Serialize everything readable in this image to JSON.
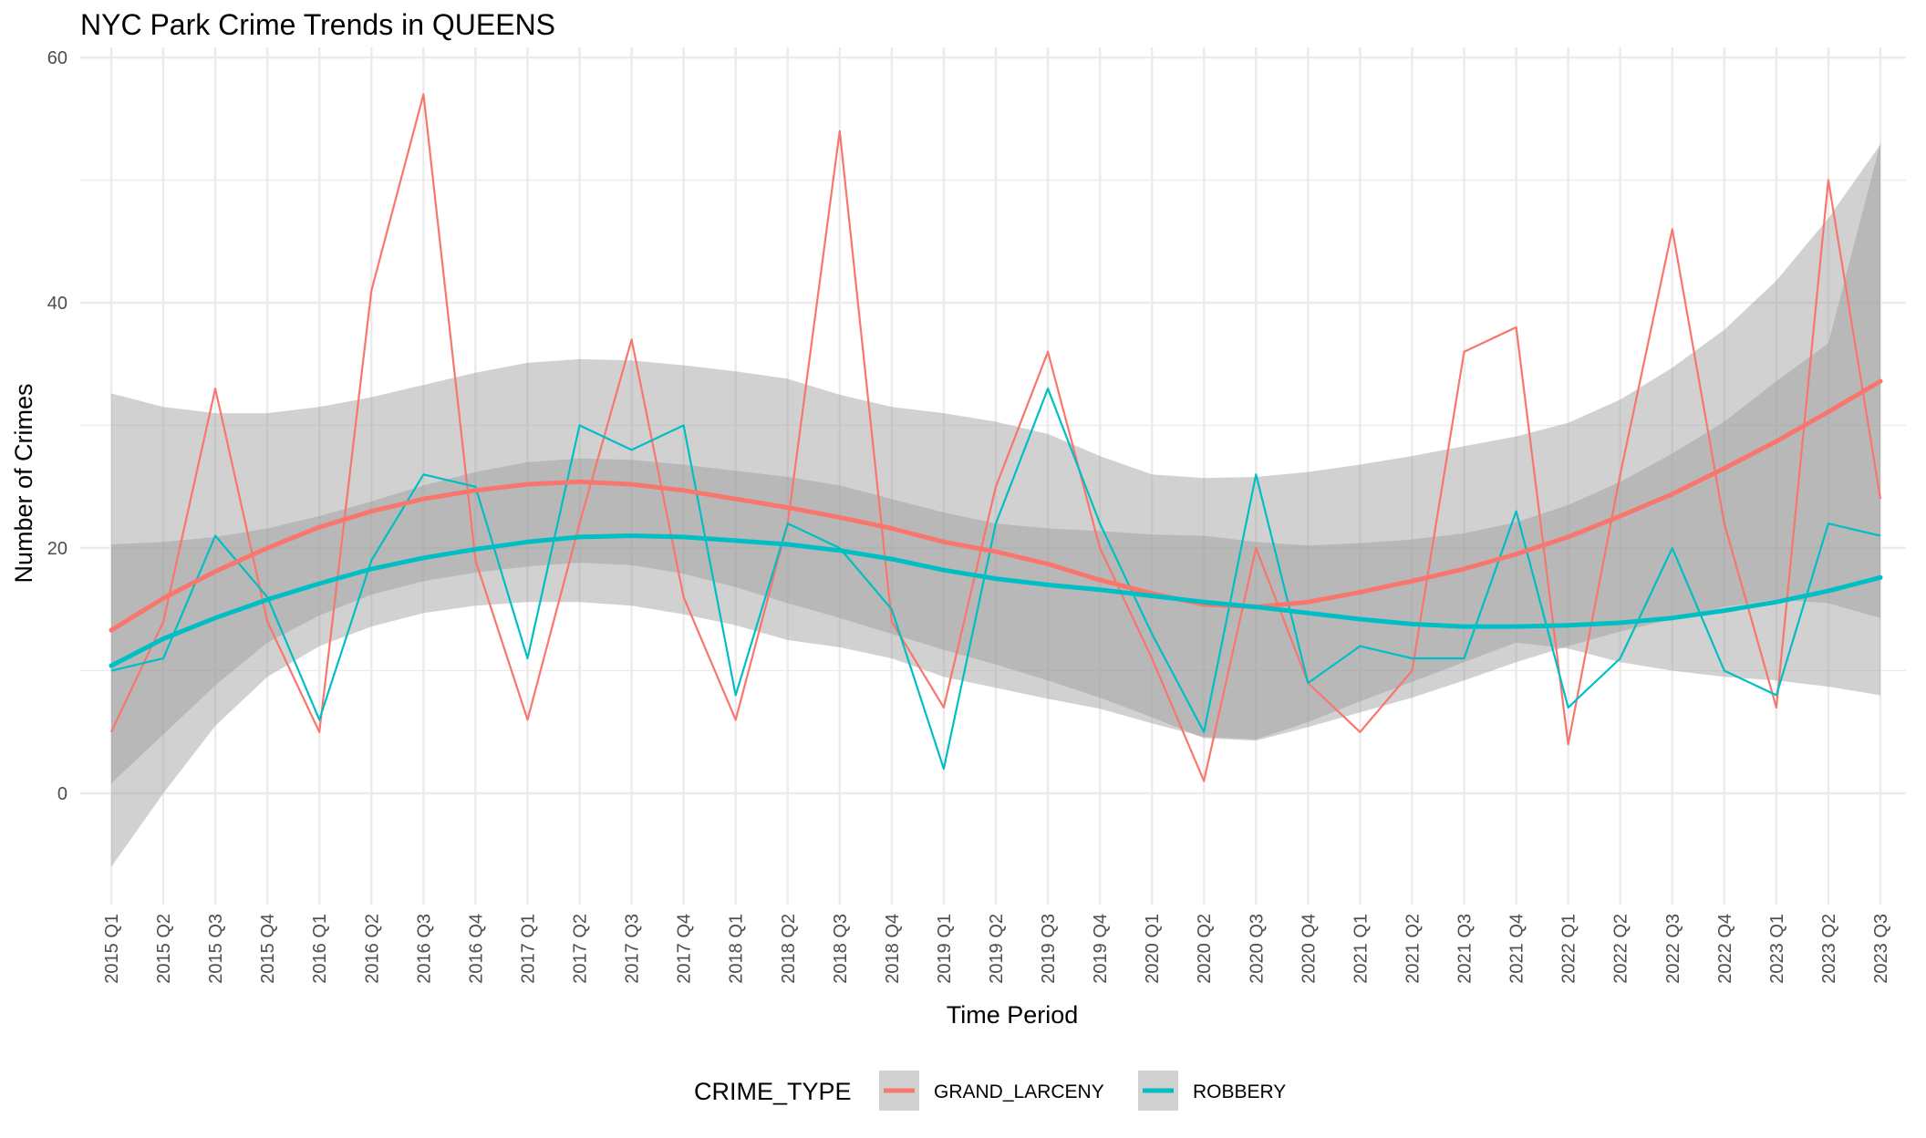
{
  "chart_data": {
    "type": "line",
    "title": "NYC Park Crime Trends in QUEENS",
    "xlabel": "Time Period",
    "ylabel": "Number of Crimes",
    "ylim": [
      -9,
      60
    ],
    "yticks": [
      0,
      20,
      40,
      60
    ],
    "grid": true,
    "legend": {
      "title": "CRIME_TYPE",
      "position": "bottom"
    },
    "categories": [
      "2015 Q1",
      "2015 Q2",
      "2015 Q3",
      "2015 Q4",
      "2016 Q1",
      "2016 Q2",
      "2016 Q3",
      "2016 Q4",
      "2017 Q1",
      "2017 Q2",
      "2017 Q3",
      "2017 Q4",
      "2018 Q1",
      "2018 Q2",
      "2018 Q3",
      "2018 Q4",
      "2019 Q1",
      "2019 Q2",
      "2019 Q3",
      "2019 Q4",
      "2020 Q1",
      "2020 Q2",
      "2020 Q3",
      "2020 Q4",
      "2021 Q1",
      "2021 Q2",
      "2021 Q3",
      "2021 Q4",
      "2022 Q1",
      "2022 Q2",
      "2022 Q3",
      "2022 Q4",
      "2023 Q1",
      "2023 Q2",
      "2023 Q3"
    ],
    "series": [
      {
        "name": "GRAND_LARCENY",
        "color": "#F8766D",
        "values": [
          5,
          14,
          33,
          14,
          5,
          41,
          57,
          19,
          6,
          22,
          37,
          16,
          6,
          22,
          54,
          14,
          7,
          25,
          36,
          20,
          11,
          1,
          20,
          9,
          5,
          10,
          36,
          38,
          4,
          26,
          46,
          22,
          7,
          50,
          24
        ],
        "smooth": [
          13.3,
          15.9,
          18.1,
          20.0,
          21.7,
          23.0,
          24.0,
          24.7,
          25.2,
          25.4,
          25.2,
          24.7,
          24.0,
          23.3,
          22.5,
          21.6,
          20.5,
          19.7,
          18.7,
          17.4,
          16.3,
          15.4,
          15.2,
          15.6,
          16.4,
          17.3,
          18.3,
          19.5,
          20.9,
          22.6,
          24.4,
          26.5,
          28.7,
          31.1,
          33.6
        ],
        "band_lower": [
          0.8,
          4.8,
          8.8,
          12.3,
          14.5,
          16.2,
          17.3,
          18.0,
          18.5,
          18.8,
          18.6,
          17.9,
          16.8,
          15.5,
          14.3,
          13.0,
          11.7,
          10.5,
          9.2,
          7.8,
          6.2,
          4.5,
          4.3,
          5.4,
          6.6,
          7.8,
          9.2,
          10.7,
          12.0,
          13.2,
          14.2,
          15.2,
          15.8,
          15.5,
          14.3
        ],
        "band_upper": [
          20.3,
          20.5,
          20.9,
          21.6,
          22.6,
          23.8,
          25.1,
          26.2,
          27.0,
          27.3,
          27.2,
          26.8,
          26.3,
          25.8,
          25.1,
          24.0,
          22.9,
          22.0,
          21.6,
          21.4,
          21.1,
          21.0,
          20.5,
          20.2,
          20.4,
          20.7,
          21.2,
          22.1,
          23.5,
          25.4,
          27.7,
          30.3,
          33.6,
          36.7,
          53.0
        ]
      },
      {
        "name": "ROBBERY",
        "color": "#00BFC4",
        "values": [
          10,
          11,
          21,
          16,
          6,
          19,
          26,
          25,
          11,
          30,
          28,
          30,
          8,
          22,
          20,
          15,
          2,
          22,
          33,
          22,
          13,
          5,
          26,
          9,
          12,
          11,
          11,
          23,
          7,
          11,
          20,
          10,
          8,
          22,
          21
        ],
        "smooth": [
          10.4,
          12.6,
          14.3,
          15.8,
          17.1,
          18.3,
          19.2,
          19.9,
          20.5,
          20.9,
          21.0,
          20.9,
          20.6,
          20.3,
          19.8,
          19.1,
          18.2,
          17.5,
          17.0,
          16.6,
          16.1,
          15.6,
          15.2,
          14.7,
          14.2,
          13.8,
          13.6,
          13.6,
          13.7,
          13.9,
          14.3,
          14.9,
          15.6,
          16.5,
          17.6
        ],
        "band_lower": [
          -6.0,
          0.0,
          5.5,
          9.5,
          12.0,
          13.6,
          14.7,
          15.3,
          15.6,
          15.6,
          15.3,
          14.6,
          13.7,
          12.5,
          11.9,
          11.0,
          9.5,
          8.6,
          7.7,
          6.9,
          5.7,
          4.6,
          4.4,
          5.8,
          7.5,
          9.1,
          10.7,
          12.3,
          11.8,
          10.7,
          10.0,
          9.5,
          9.2,
          8.7,
          8.0
        ],
        "band_upper": [
          32.6,
          31.5,
          31.0,
          31.0,
          31.5,
          32.3,
          33.3,
          34.3,
          35.1,
          35.4,
          35.3,
          34.9,
          34.4,
          33.8,
          32.5,
          31.5,
          31.0,
          30.3,
          29.3,
          27.5,
          26.0,
          25.7,
          25.8,
          26.2,
          26.8,
          27.5,
          28.3,
          29.1,
          30.2,
          32.1,
          34.7,
          37.8,
          41.8,
          46.9,
          52.9
        ]
      }
    ]
  }
}
